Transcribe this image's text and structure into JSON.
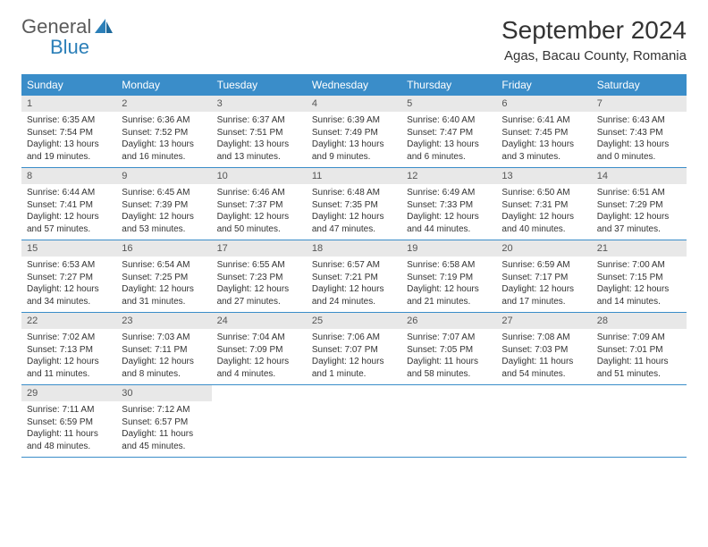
{
  "logo": {
    "text1": "General",
    "text2": "Blue"
  },
  "title": "September 2024",
  "location": "Agas, Bacau County, Romania",
  "colors": {
    "header_bg": "#3a8dc9",
    "header_text": "#ffffff",
    "daynum_bg": "#e8e8e8",
    "logo_gray": "#5a5a5a",
    "logo_blue": "#2b7fb8",
    "row_border": "#3a8dc9"
  },
  "day_headers": [
    "Sunday",
    "Monday",
    "Tuesday",
    "Wednesday",
    "Thursday",
    "Friday",
    "Saturday"
  ],
  "weeks": [
    [
      {
        "n": "1",
        "sr": "Sunrise: 6:35 AM",
        "ss": "Sunset: 7:54 PM",
        "d1": "Daylight: 13 hours",
        "d2": "and 19 minutes."
      },
      {
        "n": "2",
        "sr": "Sunrise: 6:36 AM",
        "ss": "Sunset: 7:52 PM",
        "d1": "Daylight: 13 hours",
        "d2": "and 16 minutes."
      },
      {
        "n": "3",
        "sr": "Sunrise: 6:37 AM",
        "ss": "Sunset: 7:51 PM",
        "d1": "Daylight: 13 hours",
        "d2": "and 13 minutes."
      },
      {
        "n": "4",
        "sr": "Sunrise: 6:39 AM",
        "ss": "Sunset: 7:49 PM",
        "d1": "Daylight: 13 hours",
        "d2": "and 9 minutes."
      },
      {
        "n": "5",
        "sr": "Sunrise: 6:40 AM",
        "ss": "Sunset: 7:47 PM",
        "d1": "Daylight: 13 hours",
        "d2": "and 6 minutes."
      },
      {
        "n": "6",
        "sr": "Sunrise: 6:41 AM",
        "ss": "Sunset: 7:45 PM",
        "d1": "Daylight: 13 hours",
        "d2": "and 3 minutes."
      },
      {
        "n": "7",
        "sr": "Sunrise: 6:43 AM",
        "ss": "Sunset: 7:43 PM",
        "d1": "Daylight: 13 hours",
        "d2": "and 0 minutes."
      }
    ],
    [
      {
        "n": "8",
        "sr": "Sunrise: 6:44 AM",
        "ss": "Sunset: 7:41 PM",
        "d1": "Daylight: 12 hours",
        "d2": "and 57 minutes."
      },
      {
        "n": "9",
        "sr": "Sunrise: 6:45 AM",
        "ss": "Sunset: 7:39 PM",
        "d1": "Daylight: 12 hours",
        "d2": "and 53 minutes."
      },
      {
        "n": "10",
        "sr": "Sunrise: 6:46 AM",
        "ss": "Sunset: 7:37 PM",
        "d1": "Daylight: 12 hours",
        "d2": "and 50 minutes."
      },
      {
        "n": "11",
        "sr": "Sunrise: 6:48 AM",
        "ss": "Sunset: 7:35 PM",
        "d1": "Daylight: 12 hours",
        "d2": "and 47 minutes."
      },
      {
        "n": "12",
        "sr": "Sunrise: 6:49 AM",
        "ss": "Sunset: 7:33 PM",
        "d1": "Daylight: 12 hours",
        "d2": "and 44 minutes."
      },
      {
        "n": "13",
        "sr": "Sunrise: 6:50 AM",
        "ss": "Sunset: 7:31 PM",
        "d1": "Daylight: 12 hours",
        "d2": "and 40 minutes."
      },
      {
        "n": "14",
        "sr": "Sunrise: 6:51 AM",
        "ss": "Sunset: 7:29 PM",
        "d1": "Daylight: 12 hours",
        "d2": "and 37 minutes."
      }
    ],
    [
      {
        "n": "15",
        "sr": "Sunrise: 6:53 AM",
        "ss": "Sunset: 7:27 PM",
        "d1": "Daylight: 12 hours",
        "d2": "and 34 minutes."
      },
      {
        "n": "16",
        "sr": "Sunrise: 6:54 AM",
        "ss": "Sunset: 7:25 PM",
        "d1": "Daylight: 12 hours",
        "d2": "and 31 minutes."
      },
      {
        "n": "17",
        "sr": "Sunrise: 6:55 AM",
        "ss": "Sunset: 7:23 PM",
        "d1": "Daylight: 12 hours",
        "d2": "and 27 minutes."
      },
      {
        "n": "18",
        "sr": "Sunrise: 6:57 AM",
        "ss": "Sunset: 7:21 PM",
        "d1": "Daylight: 12 hours",
        "d2": "and 24 minutes."
      },
      {
        "n": "19",
        "sr": "Sunrise: 6:58 AM",
        "ss": "Sunset: 7:19 PM",
        "d1": "Daylight: 12 hours",
        "d2": "and 21 minutes."
      },
      {
        "n": "20",
        "sr": "Sunrise: 6:59 AM",
        "ss": "Sunset: 7:17 PM",
        "d1": "Daylight: 12 hours",
        "d2": "and 17 minutes."
      },
      {
        "n": "21",
        "sr": "Sunrise: 7:00 AM",
        "ss": "Sunset: 7:15 PM",
        "d1": "Daylight: 12 hours",
        "d2": "and 14 minutes."
      }
    ],
    [
      {
        "n": "22",
        "sr": "Sunrise: 7:02 AM",
        "ss": "Sunset: 7:13 PM",
        "d1": "Daylight: 12 hours",
        "d2": "and 11 minutes."
      },
      {
        "n": "23",
        "sr": "Sunrise: 7:03 AM",
        "ss": "Sunset: 7:11 PM",
        "d1": "Daylight: 12 hours",
        "d2": "and 8 minutes."
      },
      {
        "n": "24",
        "sr": "Sunrise: 7:04 AM",
        "ss": "Sunset: 7:09 PM",
        "d1": "Daylight: 12 hours",
        "d2": "and 4 minutes."
      },
      {
        "n": "25",
        "sr": "Sunrise: 7:06 AM",
        "ss": "Sunset: 7:07 PM",
        "d1": "Daylight: 12 hours",
        "d2": "and 1 minute."
      },
      {
        "n": "26",
        "sr": "Sunrise: 7:07 AM",
        "ss": "Sunset: 7:05 PM",
        "d1": "Daylight: 11 hours",
        "d2": "and 58 minutes."
      },
      {
        "n": "27",
        "sr": "Sunrise: 7:08 AM",
        "ss": "Sunset: 7:03 PM",
        "d1": "Daylight: 11 hours",
        "d2": "and 54 minutes."
      },
      {
        "n": "28",
        "sr": "Sunrise: 7:09 AM",
        "ss": "Sunset: 7:01 PM",
        "d1": "Daylight: 11 hours",
        "d2": "and 51 minutes."
      }
    ],
    [
      {
        "n": "29",
        "sr": "Sunrise: 7:11 AM",
        "ss": "Sunset: 6:59 PM",
        "d1": "Daylight: 11 hours",
        "d2": "and 48 minutes."
      },
      {
        "n": "30",
        "sr": "Sunrise: 7:12 AM",
        "ss": "Sunset: 6:57 PM",
        "d1": "Daylight: 11 hours",
        "d2": "and 45 minutes."
      },
      null,
      null,
      null,
      null,
      null
    ]
  ]
}
